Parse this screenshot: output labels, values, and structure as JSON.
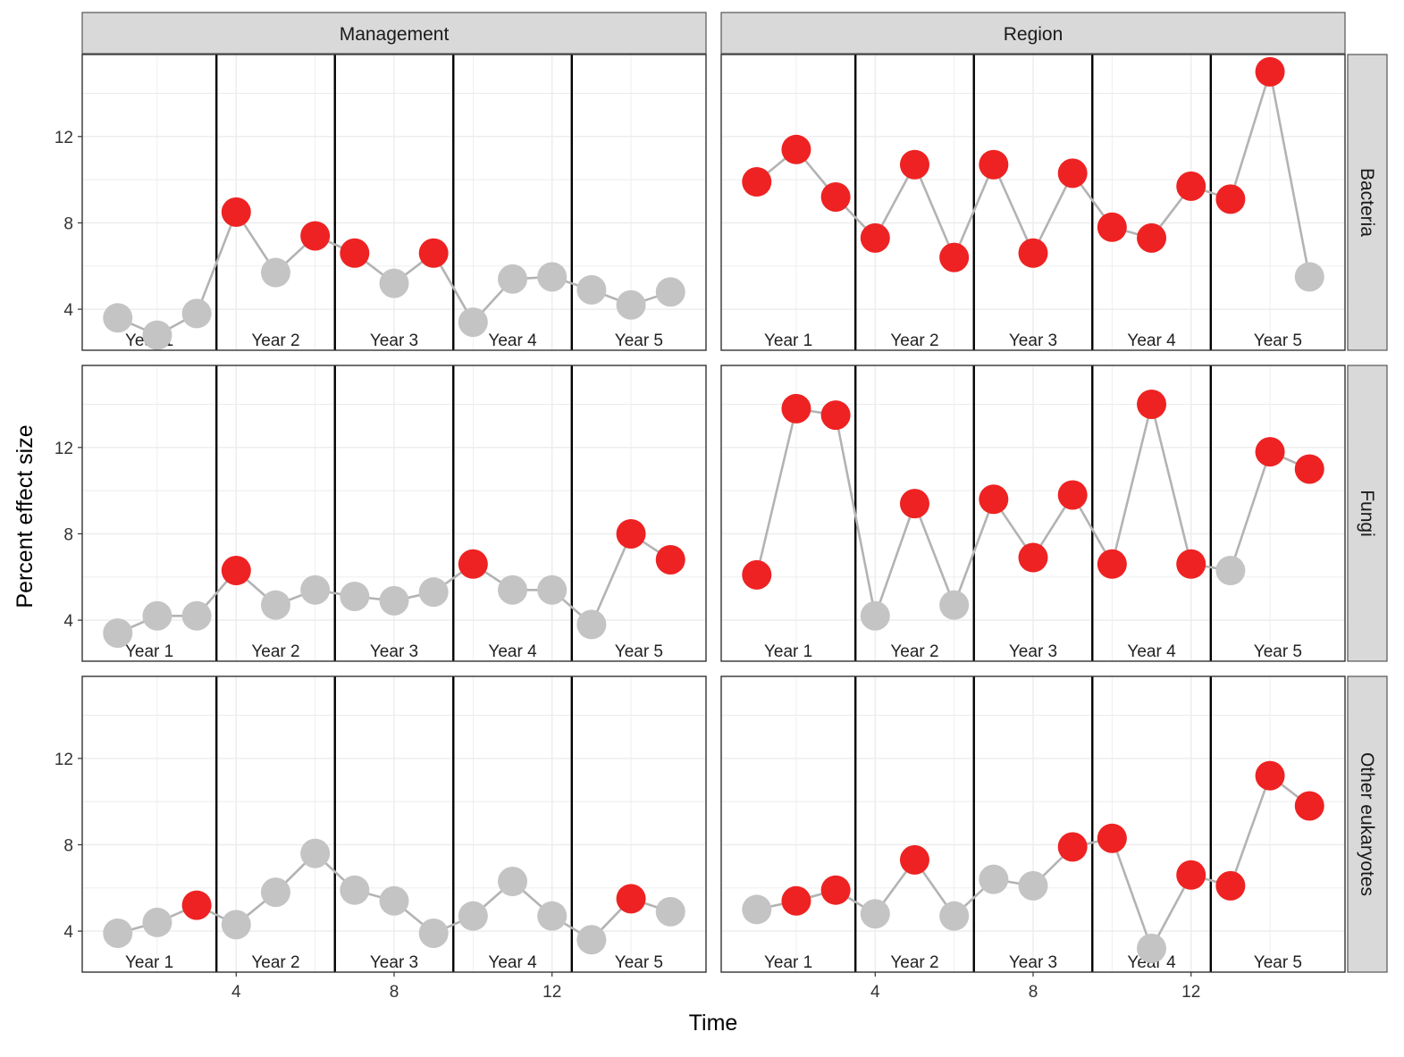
{
  "chart_data": {
    "type": "scatter",
    "ylabel": "Percent effect size",
    "xlabel": "Time",
    "column_facets": [
      "Management",
      "Region"
    ],
    "row_facets": [
      "Bacteria",
      "Fungi",
      "Other eukaryotes"
    ],
    "year_labels": [
      "Year 1",
      "Year 2",
      "Year 3",
      "Year 4",
      "Year 5"
    ],
    "x_ticks": [
      "4",
      "8",
      "12"
    ],
    "x_tick_values": [
      4,
      8,
      12
    ],
    "y_ticks": [
      "4",
      "8",
      "12"
    ],
    "y_tick_values": [
      4,
      8,
      12
    ],
    "xlim": [
      0.1,
      15.9
    ],
    "ylim": [
      2.1,
      15.8
    ],
    "year_boundaries": [
      3.5,
      6.5,
      9.5,
      12.5
    ],
    "x": [
      1,
      2,
      3,
      4,
      5,
      6,
      7,
      8,
      9,
      10,
      11,
      12,
      13,
      14,
      15
    ],
    "colors": {
      "significant": "#ee2222",
      "non_significant": "#c4c4c4",
      "line": "#b3b3b3",
      "strip": "#d9d9d9",
      "grid": "#ececec"
    },
    "panels": [
      {
        "column": "Management",
        "row": "Bacteria",
        "values": [
          3.6,
          2.8,
          3.8,
          8.5,
          5.7,
          7.4,
          6.6,
          5.2,
          6.6,
          3.4,
          5.4,
          5.5,
          4.9,
          4.2,
          4.8
        ],
        "significant": [
          0,
          0,
          0,
          1,
          0,
          1,
          1,
          0,
          1,
          0,
          0,
          0,
          0,
          0,
          0
        ]
      },
      {
        "column": "Region",
        "row": "Bacteria",
        "values": [
          9.9,
          11.4,
          9.2,
          7.3,
          10.7,
          6.4,
          10.7,
          6.6,
          10.3,
          7.8,
          7.3,
          9.7,
          9.1,
          15.0,
          5.5
        ],
        "significant": [
          1,
          1,
          1,
          1,
          1,
          1,
          1,
          1,
          1,
          1,
          1,
          1,
          1,
          1,
          0
        ]
      },
      {
        "column": "Management",
        "row": "Fungi",
        "values": [
          3.4,
          4.2,
          4.2,
          6.3,
          4.7,
          5.4,
          5.1,
          4.9,
          5.3,
          6.6,
          5.4,
          5.4,
          3.8,
          8.0,
          6.8
        ],
        "significant": [
          0,
          0,
          0,
          1,
          0,
          0,
          0,
          0,
          0,
          1,
          0,
          0,
          0,
          1,
          1
        ]
      },
      {
        "column": "Region",
        "row": "Fungi",
        "values": [
          6.1,
          13.8,
          13.5,
          4.2,
          9.4,
          4.7,
          9.6,
          6.9,
          9.8,
          6.6,
          14.0,
          6.6,
          6.3,
          11.8,
          11.0
        ],
        "significant": [
          1,
          1,
          1,
          0,
          1,
          0,
          1,
          1,
          1,
          1,
          1,
          1,
          0,
          1,
          1
        ]
      },
      {
        "column": "Management",
        "row": "Other eukaryotes",
        "values": [
          3.9,
          4.4,
          5.2,
          4.3,
          5.8,
          7.6,
          5.9,
          5.4,
          3.9,
          4.7,
          6.3,
          4.7,
          3.6,
          5.5,
          4.9
        ],
        "significant": [
          0,
          0,
          1,
          0,
          0,
          0,
          0,
          0,
          0,
          0,
          0,
          0,
          0,
          1,
          0
        ]
      },
      {
        "column": "Region",
        "row": "Other eukaryotes",
        "values": [
          5.0,
          5.4,
          5.9,
          4.8,
          7.3,
          4.7,
          6.4,
          6.1,
          7.9,
          8.3,
          3.2,
          6.6,
          6.1,
          11.2,
          9.8
        ],
        "significant": [
          0,
          1,
          1,
          0,
          1,
          0,
          0,
          0,
          1,
          1,
          0,
          1,
          1,
          1,
          1
        ]
      }
    ]
  }
}
